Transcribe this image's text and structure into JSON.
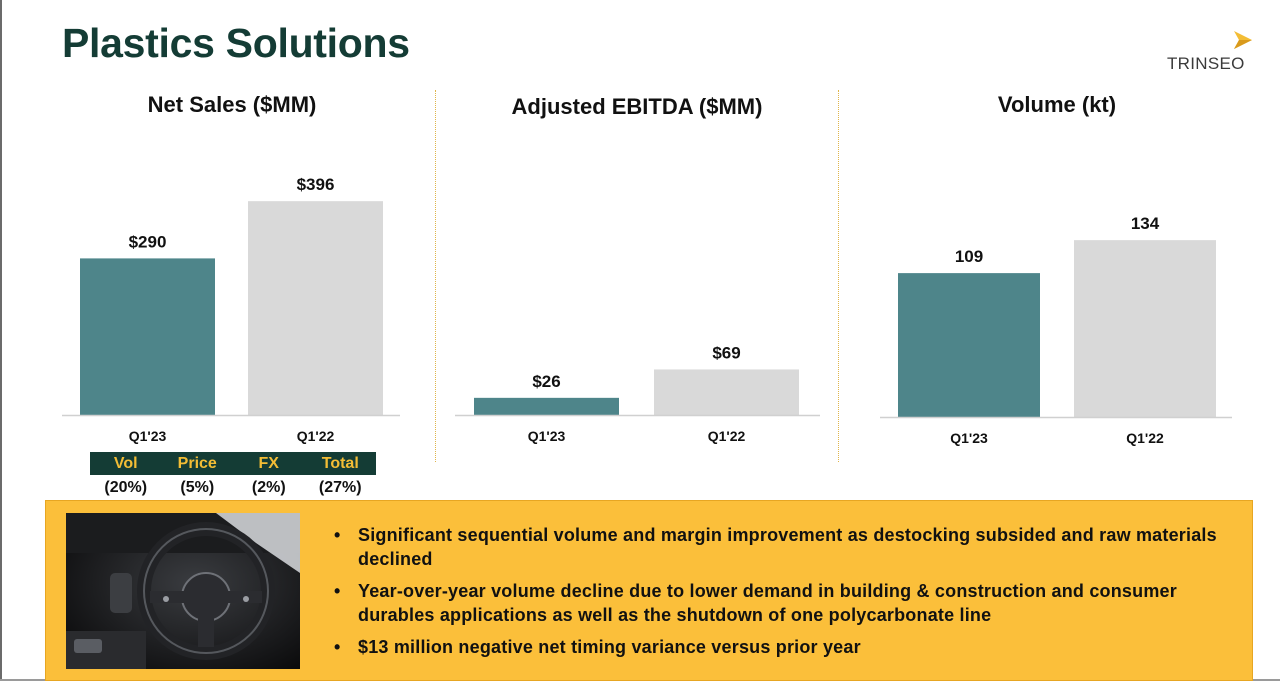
{
  "page": {
    "title": "Plastics Solutions",
    "logo_text": "TRINSEO"
  },
  "colors": {
    "current": "#4e858a",
    "prior": "#d9d9d9",
    "title": "#143c35",
    "accent": "#f3bd35",
    "callout_bg": "#fbbf3a"
  },
  "chart_data": [
    {
      "type": "bar",
      "title": "Net Sales ($MM)",
      "categories": [
        "Q1'23",
        "Q1'22"
      ],
      "values": [
        290,
        396
      ],
      "value_labels": [
        "$290",
        "$396"
      ],
      "ylim": [
        0,
        480
      ]
    },
    {
      "type": "bar",
      "title": "Adjusted EBITDA ($MM)",
      "categories": [
        "Q1'23",
        "Q1'22"
      ],
      "values": [
        26,
        69
      ],
      "value_labels": [
        "$26",
        "$69"
      ],
      "ylim": [
        0,
        120
      ]
    },
    {
      "type": "bar",
      "title": "Volume (kt)",
      "categories": [
        "Q1'23",
        "Q1'22"
      ],
      "values": [
        109,
        134
      ],
      "value_labels": [
        "109",
        "134"
      ],
      "ylim": [
        0,
        170
      ]
    }
  ],
  "variance_table": {
    "headers": [
      "Vol",
      "Price",
      "FX",
      "Total"
    ],
    "values": [
      "(20%)",
      "(5%)",
      "(2%)",
      "(27%)"
    ]
  },
  "callout": {
    "image_icon": "steering-wheel-photo",
    "bullet_symbol": "•",
    "bullets": [
      "Significant sequential volume and margin improvement as destocking subsided and raw materials declined",
      "Year-over-year volume decline due to lower demand in building & construction and consumer durables applications as well as the shutdown of one polycarbonate line",
      "$13 million negative net timing variance versus prior year"
    ]
  }
}
